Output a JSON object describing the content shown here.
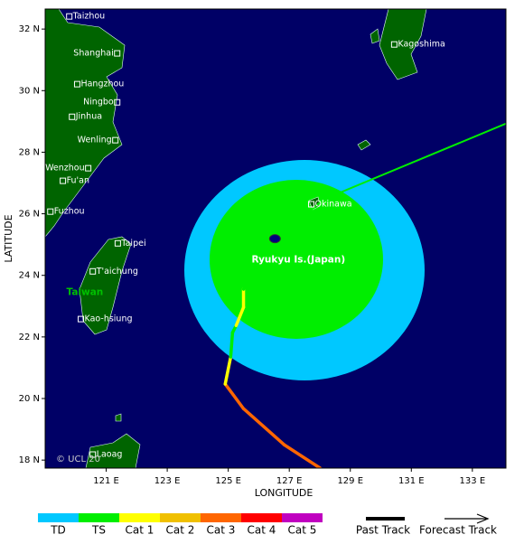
{
  "chart_data": {
    "type": "map",
    "xlabel": "LONGITUDE",
    "ylabel": "LATITUDE",
    "xlim": [
      119,
      134.1
    ],
    "ylim": [
      17.74,
      32.65
    ],
    "xticks": [
      {
        "value": 121,
        "label": "121 E"
      },
      {
        "value": 123,
        "label": "123 E"
      },
      {
        "value": 125,
        "label": "125 E"
      },
      {
        "value": 127,
        "label": "127 E"
      },
      {
        "value": 129,
        "label": "129 E"
      },
      {
        "value": 131,
        "label": "131 E"
      },
      {
        "value": 133,
        "label": "133 E"
      }
    ],
    "yticks": [
      {
        "value": 18,
        "label": "18 N"
      },
      {
        "value": 20,
        "label": "20 N"
      },
      {
        "value": 22,
        "label": "22 N"
      },
      {
        "value": 24,
        "label": "24 N"
      },
      {
        "value": 26,
        "label": "26 N"
      },
      {
        "value": 28,
        "label": "28 N"
      },
      {
        "value": 30,
        "label": "30 N"
      },
      {
        "value": 32,
        "label": "32 N"
      }
    ],
    "cities": [
      {
        "name": "Taizhou",
        "lon": 119.79,
        "lat": 32.41
      },
      {
        "name": "Shanghai",
        "lon": 121.36,
        "lat": 31.21,
        "anchor": "end"
      },
      {
        "name": "Hangzhou",
        "lon": 120.05,
        "lat": 30.21
      },
      {
        "name": "Ningbo",
        "lon": 121.36,
        "lat": 29.62,
        "anchor": "end"
      },
      {
        "name": "Jinhua",
        "lon": 119.88,
        "lat": 29.15
      },
      {
        "name": "Wenling",
        "lon": 121.3,
        "lat": 28.39,
        "anchor": "end"
      },
      {
        "name": "Wenzhou",
        "lon": 120.41,
        "lat": 27.48,
        "anchor": "end"
      },
      {
        "name": "Fu'an",
        "lon": 119.58,
        "lat": 27.07
      },
      {
        "name": "Fuzhou",
        "lon": 119.17,
        "lat": 26.07
      },
      {
        "name": "Taipei",
        "lon": 121.38,
        "lat": 25.04
      },
      {
        "name": "T'aichung",
        "lon": 120.56,
        "lat": 24.13
      },
      {
        "name": "Kao-hsiung",
        "lon": 120.17,
        "lat": 22.58
      },
      {
        "name": "Laoag",
        "lon": 120.56,
        "lat": 18.18
      },
      {
        "name": "Kagoshima",
        "lon": 130.44,
        "lat": 31.5
      },
      {
        "name": "Okinawa",
        "lon": 127.72,
        "lat": 26.31
      }
    ],
    "regions": [
      {
        "text": "Taiwan",
        "lon": 120.3,
        "lat": 23.45,
        "color": "#00c000"
      },
      {
        "text": "Ryukyu Is.(Japan)",
        "lon": 127.3,
        "lat": 24.5,
        "color": "#ffffff"
      }
    ],
    "copyright": "© UCL 20",
    "track": {
      "past": [
        {
          "lon": 128.01,
          "lat": 17.74,
          "category": "Cat 3"
        },
        {
          "lon": 126.83,
          "lat": 18.5,
          "category": "Cat 3"
        },
        {
          "lon": 125.5,
          "lat": 19.67,
          "category": "Cat 3"
        },
        {
          "lon": 124.9,
          "lat": 20.47,
          "category": "Cat 3"
        },
        {
          "lon": 125.08,
          "lat": 21.35,
          "category": "Cat 1"
        },
        {
          "lon": 125.14,
          "lat": 22.14,
          "category": "TS"
        },
        {
          "lon": 125.26,
          "lat": 22.37,
          "category": "TS"
        },
        {
          "lon": 125.5,
          "lat": 22.96,
          "category": "Cat 1"
        },
        {
          "lon": 125.5,
          "lat": 23.55,
          "category": "Cat 1"
        },
        {
          "lon": 126.53,
          "lat": 25.19,
          "category": "TS"
        }
      ],
      "forecast": [
        {
          "lon": 126.53,
          "lat": 25.19,
          "category": "TS"
        },
        {
          "lon": 128.16,
          "lat": 26.48,
          "category": "TS"
        },
        {
          "lon": 134.08,
          "lat": 28.92,
          "category": "TS"
        }
      ]
    },
    "legend": [
      {
        "name": "TD",
        "color": "#00c8ff"
      },
      {
        "name": "TS",
        "color": "#00ee00"
      },
      {
        "name": "Cat 1",
        "color": "#ffff00"
      },
      {
        "name": "Cat 2",
        "color": "#f0c000"
      },
      {
        "name": "Cat 3",
        "color": "#ff6600"
      },
      {
        "name": "Cat 4",
        "color": "#ff0000"
      },
      {
        "name": "Cat 5",
        "color": "#c000c0"
      }
    ],
    "past_track_label": "Past Track",
    "forecast_track_label": "Forecast Track"
  }
}
